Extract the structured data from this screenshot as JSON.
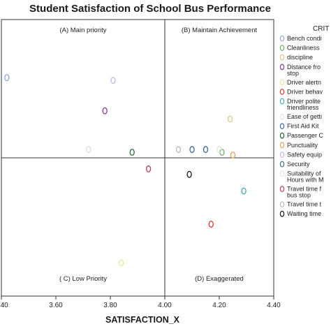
{
  "chart_data": {
    "type": "scatter",
    "title": "Student Satisfaction of School Bus Performance",
    "xlabel": "SATISFACTION_X",
    "ylabel": "",
    "xlim": [
      3.4,
      4.4
    ],
    "ylim": [
      0,
      1
    ],
    "x_ticks": [
      "3.40",
      "3.60",
      "3.80",
      "4.00",
      "4.20",
      "4.40"
    ],
    "x_tick_values": [
      3.4,
      3.6,
      3.8,
      4.0,
      4.2,
      4.4
    ],
    "reference_x": 4.0,
    "reference_y": 0.5,
    "quadrants": [
      {
        "label": "(A) Main priority",
        "x": 3.7,
        "y": 0.955
      },
      {
        "label": "(B) Maintain Achievement",
        "x": 4.2,
        "y": 0.955
      },
      {
        "label": "( C) Low Priority",
        "x": 3.7,
        "y": 0.055
      },
      {
        "label": "(D) Exaggerated",
        "x": 4.2,
        "y": 0.055
      }
    ],
    "legend_title": "CRIT",
    "legend_position": "right",
    "series": [
      {
        "name": "Bench condi",
        "color": "#8fa8d8",
        "x": 3.42,
        "y": 0.79
      },
      {
        "name": "Cleanliness",
        "color": "#6ab06a",
        "x": 4.21,
        "y": 0.52
      },
      {
        "name": "discipline",
        "color": "#d8cc88",
        "x": 4.24,
        "y": 0.64
      },
      {
        "name": "Distance fro|stop",
        "color": "#8a3a9a",
        "x": 3.78,
        "y": 0.67
      },
      {
        "name": "Driver alertn",
        "color": "#e8e8a0",
        "x": 3.84,
        "y": 0.12
      },
      {
        "name": "Driver behav",
        "color": "#d83a2a",
        "x": 4.17,
        "y": 0.26
      },
      {
        "name": "Driver polite|friendliness",
        "color": "#48a8b0",
        "x": 4.29,
        "y": 0.38
      },
      {
        "name": "Ease of getti",
        "color": "#e0e0e0",
        "x": 3.72,
        "y": 0.53
      },
      {
        "name": "First Aid Kit",
        "color": "#3a6aa8",
        "x": 4.1,
        "y": 0.53
      },
      {
        "name": "Passenger C",
        "color": "#2a6a3a",
        "x": 3.88,
        "y": 0.52
      },
      {
        "name": "Punctuality",
        "color": "#e8a060",
        "x": 4.25,
        "y": 0.51
      },
      {
        "name": "Safety equip",
        "color": "#c8b8e0",
        "x": 3.81,
        "y": 0.78
      },
      {
        "name": "Security",
        "color": "#3a6a8a",
        "x": 4.15,
        "y": 0.53
      },
      {
        "name": "Suitability of|Hours with M",
        "color": "#d8ecd0",
        "x": 4.2,
        "y": 0.53
      },
      {
        "name": "Travel time f|bus stop",
        "color": "#b83a6a",
        "x": 3.94,
        "y": 0.46
      },
      {
        "name": "Travel time t",
        "color": "#b8b8b8",
        "x": 4.05,
        "y": 0.53
      },
      {
        "name": "Waiting time",
        "color": "#1a1a1a",
        "x": 4.09,
        "y": 0.44
      }
    ]
  }
}
